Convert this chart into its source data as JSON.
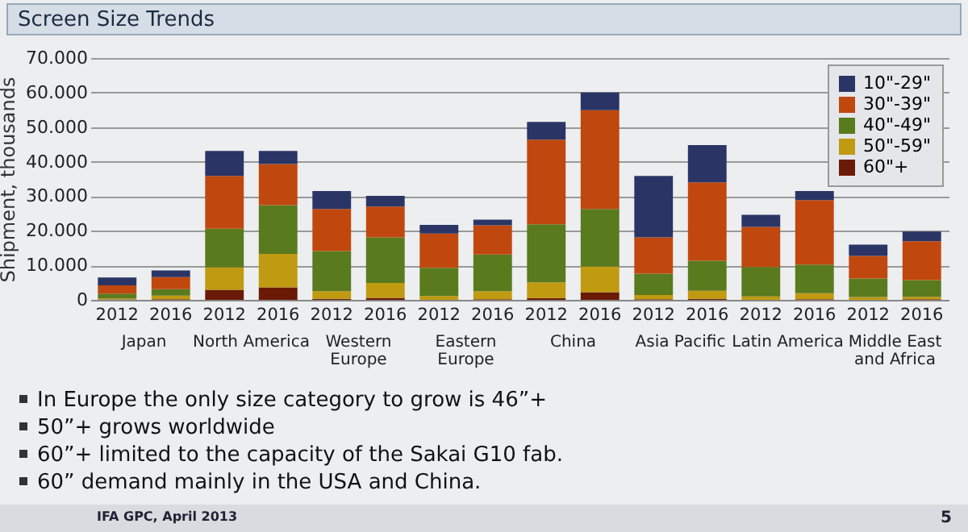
{
  "chart_data": {
    "type": "bar",
    "stacked": true,
    "title": "Screen Size Trends",
    "ylabel": "Shipment, thousands",
    "categories": [
      "2012",
      "2016",
      "2012",
      "2016",
      "2012",
      "2016",
      "2012",
      "2016",
      "2012",
      "2016",
      "2012",
      "2016",
      "2012",
      "2016",
      "2012",
      "2016"
    ],
    "series": [
      {
        "name": "60\"+",
        "color": "#6b1a05",
        "values": [
          100,
          200,
          2900,
          3600,
          300,
          600,
          null,
          200,
          500,
          2200,
          200,
          300,
          null,
          200,
          null,
          200
        ]
      },
      {
        "name": "50\"-59\"",
        "color": "#c09a10",
        "values": [
          300,
          1000,
          6500,
          9700,
          2200,
          4300,
          1100,
          2300,
          4600,
          7400,
          1200,
          2300,
          1000,
          1700,
          800,
          700
        ]
      },
      {
        "name": "40\"-49\"",
        "color": "#5a7a1e",
        "values": [
          1400,
          1900,
          11200,
          14100,
          11600,
          13200,
          8200,
          10600,
          16800,
          16700,
          6200,
          8700,
          8500,
          8300,
          5400,
          4800
        ]
      },
      {
        "name": "30\"-39\"",
        "color": "#c0480e",
        "values": [
          2400,
          3500,
          15300,
          11900,
          12200,
          8900,
          9900,
          8500,
          24500,
          28600,
          10500,
          22700,
          11600,
          18700,
          6500,
          11300
        ]
      },
      {
        "name": "10\"-29\"",
        "color": "#2b3565",
        "values": [
          2300,
          1900,
          7200,
          3800,
          5200,
          3100,
          2500,
          1600,
          5100,
          5100,
          17800,
          10800,
          3500,
          2600,
          3300,
          2800
        ]
      }
    ],
    "ylim": [
      0,
      70000
    ],
    "yticks": [
      {
        "value": 0,
        "label": "0"
      },
      {
        "value": 10000,
        "label": "10.000"
      },
      {
        "value": 20000,
        "label": "20.000"
      },
      {
        "value": 30000,
        "label": "30.000"
      },
      {
        "value": 40000,
        "label": "40.000"
      },
      {
        "value": 50000,
        "label": "50.000"
      },
      {
        "value": 60000,
        "label": "60.000"
      },
      {
        "value": 70000,
        "label": "70.000"
      }
    ],
    "grid": "y",
    "legend": "top right",
    "annotations": [
      "Japan",
      "North America",
      "Western Europe",
      "Eastern Europe",
      "China",
      "Asia Pacific",
      "Latin America",
      "Middle East and Africa",
      "In Europe the only size category to grow is 46”+",
      "50”+ grows worldwide",
      "60”+ limited to the capacity of the Sakai G10 fab.",
      "60” demand mainly in the USA and China.",
      "IFA GPC, April 2013",
      "5"
    ]
  }
}
